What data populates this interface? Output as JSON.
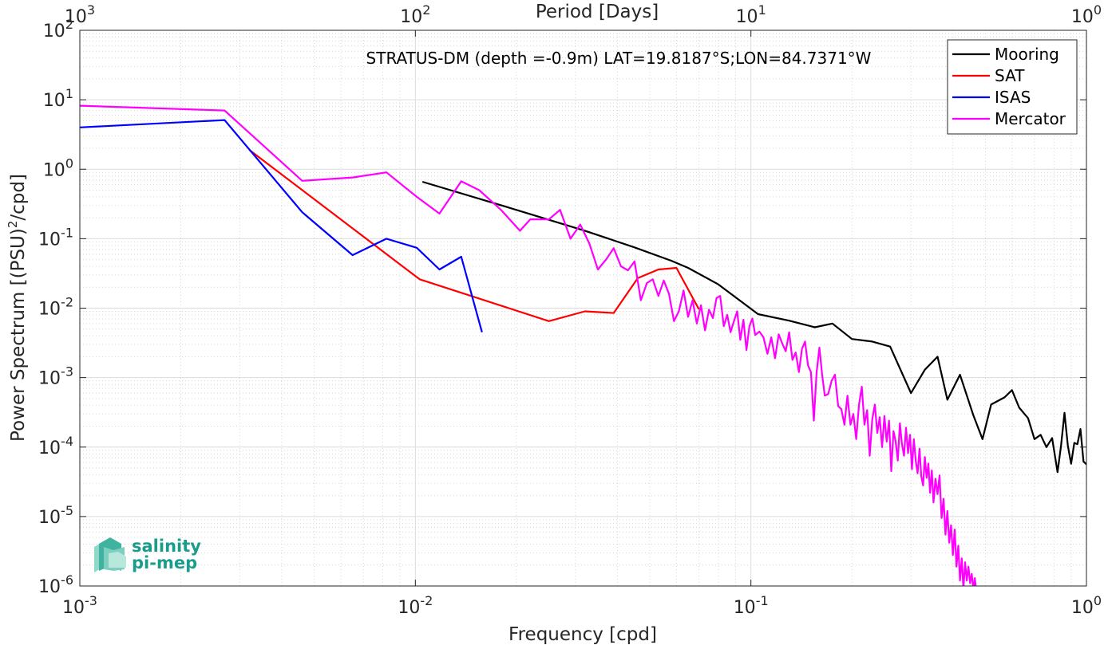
{
  "chart_data": {
    "type": "line",
    "title": "STRATUS-DM (depth =-0.9m) LAT=19.8187°S;LON=84.7371°W",
    "xlabel": "Frequency [cpd]",
    "x2label": "Period [Days]",
    "ylabel_main": "Power Spectrum [(PSU)",
    "ylabel_sup": "2",
    "ylabel_tail": "/cpd]",
    "xscale": "log",
    "yscale": "log",
    "xlim": [
      0.001,
      1
    ],
    "ylim": [
      1e-06,
      100
    ],
    "grid": true,
    "legend_position": "top-right",
    "x_ticks": [
      {
        "value": 0.001,
        "base": "10",
        "exp": "-3"
      },
      {
        "value": 0.01,
        "base": "10",
        "exp": "-2"
      },
      {
        "value": 0.1,
        "base": "10",
        "exp": "-1"
      },
      {
        "value": 1,
        "base": "10",
        "exp": "0"
      }
    ],
    "top_ticks": [
      {
        "value": 0.001,
        "base": "10",
        "exp": "3"
      },
      {
        "value": 0.01,
        "base": "10",
        "exp": "2"
      },
      {
        "value": 0.1,
        "base": "10",
        "exp": "1"
      },
      {
        "value": 1,
        "base": "10",
        "exp": "0"
      }
    ],
    "y_ticks": [
      {
        "value": 100,
        "base": "10",
        "exp": "2"
      },
      {
        "value": 10,
        "base": "10",
        "exp": "1"
      },
      {
        "value": 1,
        "base": "10",
        "exp": "0"
      },
      {
        "value": 0.1,
        "base": "10",
        "exp": "-1"
      },
      {
        "value": 0.01,
        "base": "10",
        "exp": "-2"
      },
      {
        "value": 0.001,
        "base": "10",
        "exp": "-3"
      },
      {
        "value": 0.0001,
        "base": "10",
        "exp": "-4"
      },
      {
        "value": 1e-05,
        "base": "10",
        "exp": "-5"
      },
      {
        "value": 1e-06,
        "base": "10",
        "exp": "-6"
      }
    ],
    "series": [
      {
        "name": "Mooring",
        "color": "#000000",
        "points": [
          [
            0.0105,
            0.66
          ],
          [
            0.019,
            0.28
          ],
          [
            0.032,
            0.13
          ],
          [
            0.045,
            0.075
          ],
          [
            0.058,
            0.048
          ],
          [
            0.065,
            0.038
          ],
          [
            0.08,
            0.022
          ],
          [
            0.105,
            0.0082
          ],
          [
            0.13,
            0.0066
          ],
          [
            0.155,
            0.0053
          ],
          [
            0.175,
            0.006
          ],
          [
            0.2,
            0.0036
          ],
          [
            0.23,
            0.0033
          ],
          [
            0.26,
            0.0028
          ],
          [
            0.3,
            0.0006
          ],
          [
            0.33,
            0.0013
          ],
          [
            0.36,
            0.002
          ],
          [
            0.385,
            0.00048
          ],
          [
            0.42,
            0.0011
          ],
          [
            0.46,
            0.00029
          ],
          [
            0.49,
            0.00013
          ],
          [
            0.52,
            0.00041
          ],
          [
            0.57,
            0.00052
          ],
          [
            0.6,
            0.00066
          ],
          [
            0.63,
            0.00037
          ],
          [
            0.67,
            0.00026
          ],
          [
            0.7,
            0.00013
          ],
          [
            0.73,
            0.00015
          ],
          [
            0.76,
            0.0001
          ],
          [
            0.79,
            0.000135
          ],
          [
            0.82,
            4.35e-05
          ],
          [
            0.84,
            0.000105
          ],
          [
            0.86,
            0.00031
          ],
          [
            0.88,
            0.000105
          ],
          [
            0.9,
            5.75e-05
          ],
          [
            0.92,
            0.000115
          ],
          [
            0.94,
            0.00011
          ],
          [
            0.96,
            0.000182
          ],
          [
            0.98,
            6.2e-05
          ],
          [
            1.0,
            5.65e-05
          ]
        ]
      },
      {
        "name": "SAT",
        "color": "#ff0000",
        "points": [
          [
            0.0032,
            1.9
          ],
          [
            0.0103,
            0.026
          ],
          [
            0.025,
            0.0065
          ],
          [
            0.032,
            0.009
          ],
          [
            0.039,
            0.0085
          ],
          [
            0.046,
            0.027
          ],
          [
            0.053,
            0.036
          ],
          [
            0.06,
            0.038
          ],
          [
            0.07,
            0.0096
          ]
        ]
      },
      {
        "name": "ISAS",
        "color": "#0000ff",
        "points": [
          [
            0.001,
            4.0
          ],
          [
            0.0027,
            5.1
          ],
          [
            0.0046,
            0.24
          ],
          [
            0.0065,
            0.058
          ],
          [
            0.0082,
            0.1
          ],
          [
            0.0101,
            0.074
          ],
          [
            0.0118,
            0.036
          ],
          [
            0.0137,
            0.055
          ],
          [
            0.0158,
            0.0045
          ]
        ]
      },
      {
        "name": "Mercator",
        "color": "#ff00ff",
        "points": [
          [
            0.001,
            8.2
          ],
          [
            0.0027,
            7.0
          ],
          [
            0.0046,
            0.68
          ],
          [
            0.0065,
            0.76
          ],
          [
            0.0082,
            0.9
          ],
          [
            0.0101,
            0.4
          ],
          [
            0.0118,
            0.23
          ],
          [
            0.0137,
            0.67
          ],
          [
            0.0155,
            0.5
          ],
          [
            0.018,
            0.26
          ],
          [
            0.0205,
            0.13
          ],
          [
            0.022,
            0.19
          ],
          [
            0.025,
            0.19
          ],
          [
            0.027,
            0.26
          ],
          [
            0.029,
            0.1
          ],
          [
            0.031,
            0.16
          ],
          [
            0.033,
            0.085
          ],
          [
            0.035,
            0.036
          ],
          [
            0.037,
            0.05
          ],
          [
            0.039,
            0.073
          ],
          [
            0.041,
            0.04
          ],
          [
            0.043,
            0.035
          ],
          [
            0.045,
            0.047
          ],
          [
            0.047,
            0.013
          ],
          [
            0.049,
            0.023
          ],
          [
            0.051,
            0.026
          ],
          [
            0.053,
            0.015
          ],
          [
            0.055,
            0.025
          ],
          [
            0.057,
            0.016
          ],
          [
            0.059,
            0.0065
          ],
          [
            0.061,
            0.009
          ],
          [
            0.063,
            0.018
          ],
          [
            0.065,
            0.0075
          ],
          [
            0.067,
            0.013
          ],
          [
            0.069,
            0.006
          ],
          [
            0.071,
            0.011
          ],
          [
            0.073,
            0.0048
          ],
          [
            0.075,
            0.0095
          ],
          [
            0.077,
            0.0072
          ],
          [
            0.079,
            0.014
          ],
          [
            0.081,
            0.015
          ],
          [
            0.083,
            0.0055
          ],
          [
            0.085,
            0.008
          ],
          [
            0.087,
            0.0045
          ],
          [
            0.089,
            0.0065
          ],
          [
            0.091,
            0.009
          ],
          [
            0.093,
            0.0035
          ],
          [
            0.095,
            0.0068
          ],
          [
            0.097,
            0.0025
          ],
          [
            0.099,
            0.0055
          ],
          [
            0.101,
            0.0071
          ],
          [
            0.103,
            0.0041
          ],
          [
            0.106,
            0.0046
          ],
          [
            0.109,
            0.0038
          ],
          [
            0.112,
            0.0022
          ],
          [
            0.115,
            0.0038
          ],
          [
            0.118,
            0.0019
          ],
          [
            0.121,
            0.0042
          ],
          [
            0.124,
            0.0031
          ],
          [
            0.127,
            0.0024
          ],
          [
            0.13,
            0.0045
          ],
          [
            0.133,
            0.0018
          ],
          [
            0.136,
            0.0023
          ],
          [
            0.139,
            0.0012
          ],
          [
            0.142,
            0.0026
          ],
          [
            0.145,
            0.0033
          ],
          [
            0.148,
            0.0015
          ],
          [
            0.151,
            0.0012
          ],
          [
            0.154,
            0.00024
          ],
          [
            0.157,
            0.0012
          ],
          [
            0.16,
            0.0027
          ],
          [
            0.163,
            0.0011
          ],
          [
            0.166,
            0.00055
          ],
          [
            0.17,
            0.00058
          ],
          [
            0.174,
            0.0009
          ],
          [
            0.178,
            0.0011
          ],
          [
            0.182,
            0.00039
          ],
          [
            0.186,
            0.00035
          ],
          [
            0.19,
            0.00021
          ],
          [
            0.194,
            0.00055
          ],
          [
            0.198,
            0.00021
          ],
          [
            0.202,
            0.0003
          ],
          [
            0.206,
            0.00013
          ],
          [
            0.21,
            0.00041
          ],
          [
            0.214,
            0.00074
          ],
          [
            0.218,
            0.00021
          ],
          [
            0.222,
            0.00034
          ],
          [
            0.226,
            7.5e-05
          ],
          [
            0.23,
            0.00025
          ],
          [
            0.234,
            0.00041
          ],
          [
            0.238,
            0.00016
          ],
          [
            0.242,
            0.00027
          ],
          [
            0.246,
            0.0001
          ],
          [
            0.25,
            0.00028
          ],
          [
            0.254,
            0.00012
          ],
          [
            0.258,
            0.00024
          ],
          [
            0.262,
            4.5e-05
          ],
          [
            0.266,
            0.00017
          ],
          [
            0.27,
            0.00012
          ],
          [
            0.274,
            6.4e-05
          ],
          [
            0.278,
            0.00022
          ],
          [
            0.282,
            0.00011
          ],
          [
            0.286,
            7.5e-05
          ],
          [
            0.29,
            0.00019
          ],
          [
            0.294,
            8.2e-05
          ],
          [
            0.298,
            0.00015
          ],
          [
            0.302,
            4.8e-05
          ],
          [
            0.306,
            0.00013
          ],
          [
            0.31,
            6.3e-05
          ],
          [
            0.314,
            4.2e-05
          ],
          [
            0.318,
            9.5e-05
          ],
          [
            0.322,
            3.8e-05
          ],
          [
            0.326,
            2.8e-05
          ],
          [
            0.33,
            7.2e-05
          ],
          [
            0.334,
            3.6e-05
          ],
          [
            0.338,
            5.8e-05
          ],
          [
            0.342,
            2.2e-05
          ],
          [
            0.346,
            4.6e-05
          ],
          [
            0.35,
            1.6e-05
          ],
          [
            0.355,
            3.5e-05
          ],
          [
            0.36,
            2.1e-05
          ],
          [
            0.365,
            3.9e-05
          ],
          [
            0.37,
            9.5e-06
          ],
          [
            0.375,
            1.8e-05
          ],
          [
            0.38,
            5.5e-06
          ],
          [
            0.385,
            1.2e-05
          ],
          [
            0.39,
            4.2e-06
          ],
          [
            0.395,
            7.5e-06
          ],
          [
            0.4,
            2.8e-06
          ],
          [
            0.405,
            6.5e-06
          ],
          [
            0.41,
            1.9e-06
          ],
          [
            0.415,
            3.8e-06
          ],
          [
            0.42,
            1.2e-06
          ],
          [
            0.425,
            2.5e-06
          ],
          [
            0.43,
            9e-07
          ],
          [
            0.435,
            2.2e-06
          ],
          [
            0.44,
            1.2e-06
          ],
          [
            0.445,
            1.9e-06
          ],
          [
            0.45,
            1.1e-06
          ],
          [
            0.455,
            1.5e-06
          ],
          [
            0.46,
            9e-07
          ],
          [
            0.465,
            1.3e-06
          ],
          [
            0.47,
            8e-07
          ]
        ]
      }
    ]
  },
  "logo": {
    "line1": "salinity",
    "line2": "pi-mep"
  }
}
